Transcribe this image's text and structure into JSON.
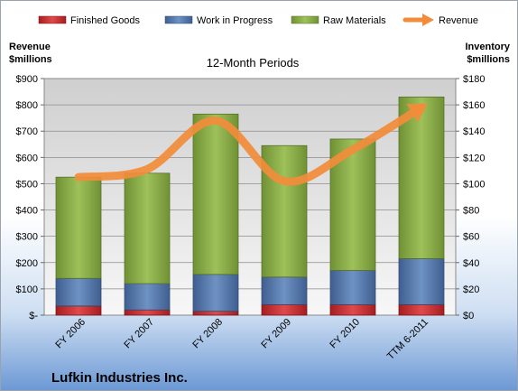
{
  "chart_data": {
    "type": "bar",
    "stacked": true,
    "subtitle": "12-Month Periods",
    "company": "Lufkin Industries Inc.",
    "categories": [
      "FY 2006",
      "FY 2007",
      "FY 2008",
      "FY 2009",
      "FY 2010",
      "TTM 6-2011"
    ],
    "left_axis": {
      "title_line1": "Revenue",
      "title_line2": "$millions",
      "ylim": [
        0,
        900
      ],
      "ticks": [
        0,
        100,
        200,
        300,
        400,
        500,
        600,
        700,
        800,
        900
      ],
      "tick_labels": [
        "$-",
        "$100",
        "$200",
        "$300",
        "$400",
        "$500",
        "$600",
        "$700",
        "$800",
        "$900"
      ]
    },
    "right_axis": {
      "title_line1": "Inventory",
      "title_line2": "$millions",
      "ylim": [
        0,
        180
      ],
      "ticks": [
        0,
        20,
        40,
        60,
        80,
        100,
        120,
        140,
        160,
        180
      ],
      "tick_labels": [
        "$0",
        "$20",
        "$40",
        "$60",
        "$80",
        "$100",
        "$120",
        "$140",
        "$160",
        "$180"
      ]
    },
    "series": [
      {
        "name": "Finished Goods",
        "axis": "right",
        "color": "#c0282b",
        "values": [
          7,
          4,
          3,
          8,
          8,
          8
        ]
      },
      {
        "name": "Work in Progress",
        "axis": "right",
        "color": "#4f73a8",
        "values": [
          21,
          20,
          28,
          21,
          26,
          35
        ]
      },
      {
        "name": "Raw Materials",
        "axis": "right",
        "color": "#86aa45",
        "values": [
          77,
          84,
          122,
          100,
          100,
          123
        ]
      },
      {
        "name": "Revenue",
        "axis": "left",
        "type": "line",
        "color": "#f28c3a",
        "values": [
          525,
          555,
          740,
          510,
          630,
          790
        ]
      }
    ],
    "legend_position": "top",
    "grid": true,
    "background": {
      "plot_top": "#d6d6d6",
      "plot_bottom": "#f4f4f4",
      "page_bottom": "#6b98d4"
    }
  }
}
